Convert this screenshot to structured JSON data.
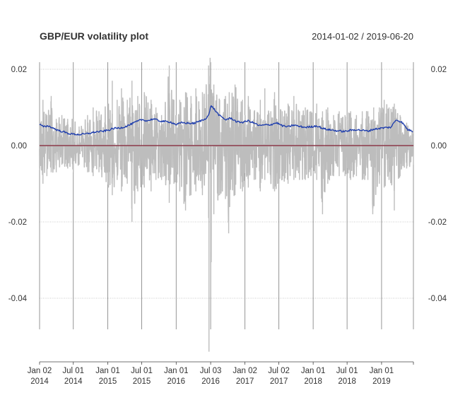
{
  "chart_data": {
    "type": "line",
    "title": "GBP/EUR volatility plot",
    "date_range_label": "2014-01-02 / 2019-06-20",
    "x_start": "2014-01-02",
    "x_end": "2019-06-20",
    "ylim": [
      -0.054,
      0.0225
    ],
    "y_ticks": [
      {
        "value": 0.02,
        "label": "0.02"
      },
      {
        "value": 0.0,
        "label": "0.00"
      },
      {
        "value": -0.02,
        "label": "-0.02"
      },
      {
        "value": -0.04,
        "label": "-0.04"
      }
    ],
    "x_ticks": [
      {
        "date": "2014-01-02",
        "line1": "Jan 02",
        "line2": "2014"
      },
      {
        "date": "2014-07-01",
        "line1": "Jul 01",
        "line2": "2014"
      },
      {
        "date": "2015-01-01",
        "line1": "Jan 01",
        "line2": "2015"
      },
      {
        "date": "2015-07-01",
        "line1": "Jul 01",
        "line2": "2015"
      },
      {
        "date": "2016-01-01",
        "line1": "Jan 01",
        "line2": "2016"
      },
      {
        "date": "2016-07-03",
        "line1": "Jul 03",
        "line2": "2016"
      },
      {
        "date": "2017-01-02",
        "line1": "Jan 02",
        "line2": "2017"
      },
      {
        "date": "2017-07-02",
        "line1": "Jul 02",
        "line2": "2017"
      },
      {
        "date": "2018-01-01",
        "line1": "Jan 01",
        "line2": "2018"
      },
      {
        "date": "2018-07-01",
        "line1": "Jul 01",
        "line2": "2018"
      },
      {
        "date": "2019-01-01",
        "line1": "Jan 01",
        "line2": "2019"
      }
    ],
    "grid": true,
    "series": [
      {
        "color": "#bdbdbd",
        "style": "daily returns (approximate envelope)",
        "upper": [
          [
            "2014-01-02",
            0.006
          ],
          [
            "2014-01-20",
            0.012
          ],
          [
            "2014-02-10",
            0.008
          ],
          [
            "2014-03-05",
            0.013
          ],
          [
            "2014-04-01",
            0.007
          ],
          [
            "2014-05-01",
            0.008
          ],
          [
            "2014-06-01",
            0.007
          ],
          [
            "2014-07-01",
            0.007
          ],
          [
            "2014-08-01",
            0.005
          ],
          [
            "2014-09-15",
            0.008
          ],
          [
            "2014-10-15",
            0.01
          ],
          [
            "2014-11-15",
            0.009
          ],
          [
            "2015-01-05",
            0.011
          ],
          [
            "2015-01-25",
            0.017
          ],
          [
            "2015-02-20",
            0.012
          ],
          [
            "2015-03-15",
            0.015
          ],
          [
            "2015-04-15",
            0.012
          ],
          [
            "2015-05-10",
            0.017
          ],
          [
            "2015-06-10",
            0.013
          ],
          [
            "2015-07-15",
            0.014
          ],
          [
            "2015-08-20",
            0.012
          ],
          [
            "2015-09-15",
            0.01
          ],
          [
            "2015-10-15",
            0.008
          ],
          [
            "2015-11-25",
            0.021
          ],
          [
            "2015-12-20",
            0.012
          ],
          [
            "2016-01-20",
            0.012
          ],
          [
            "2016-02-20",
            0.014
          ],
          [
            "2016-03-20",
            0.013
          ],
          [
            "2016-04-15",
            0.015
          ],
          [
            "2016-05-20",
            0.014
          ],
          [
            "2016-06-22",
            0.021
          ],
          [
            "2016-06-30",
            0.023
          ],
          [
            "2016-07-20",
            0.016
          ],
          [
            "2016-08-20",
            0.012
          ],
          [
            "2016-09-20",
            0.013
          ],
          [
            "2016-10-10",
            0.014
          ],
          [
            "2016-11-10",
            0.016
          ],
          [
            "2016-12-20",
            0.012
          ],
          [
            "2017-01-20",
            0.013
          ],
          [
            "2017-02-20",
            0.009
          ],
          [
            "2017-03-25",
            0.012
          ],
          [
            "2017-04-18",
            0.015
          ],
          [
            "2017-05-20",
            0.009
          ],
          [
            "2017-06-09",
            0.014
          ],
          [
            "2017-07-20",
            0.009
          ],
          [
            "2017-08-20",
            0.011
          ],
          [
            "2017-09-20",
            0.013
          ],
          [
            "2017-10-20",
            0.009
          ],
          [
            "2017-11-20",
            0.01
          ],
          [
            "2017-12-20",
            0.009
          ],
          [
            "2018-01-20",
            0.011
          ],
          [
            "2018-02-20",
            0.009
          ],
          [
            "2018-03-20",
            0.01
          ],
          [
            "2018-04-20",
            0.008
          ],
          [
            "2018-05-20",
            0.009
          ],
          [
            "2018-06-20",
            0.008
          ],
          [
            "2018-07-20",
            0.009
          ],
          [
            "2018-08-20",
            0.008
          ],
          [
            "2018-09-20",
            0.009
          ],
          [
            "2018-10-20",
            0.009
          ],
          [
            "2018-11-20",
            0.01
          ],
          [
            "2018-12-20",
            0.01
          ],
          [
            "2019-01-15",
            0.012
          ],
          [
            "2019-02-10",
            0.01
          ],
          [
            "2019-03-10",
            0.011
          ],
          [
            "2019-04-10",
            0.008
          ],
          [
            "2019-05-15",
            0.006
          ],
          [
            "2019-06-20",
            0.004
          ]
        ],
        "lower": [
          [
            "2014-01-02",
            -0.006
          ],
          [
            "2014-01-20",
            -0.01
          ],
          [
            "2014-02-10",
            -0.008
          ],
          [
            "2014-03-05",
            -0.007
          ],
          [
            "2014-04-01",
            -0.007
          ],
          [
            "2014-05-01",
            -0.005
          ],
          [
            "2014-06-01",
            -0.006
          ],
          [
            "2014-07-01",
            -0.007
          ],
          [
            "2014-08-01",
            -0.005
          ],
          [
            "2014-09-15",
            -0.007
          ],
          [
            "2014-10-15",
            -0.008
          ],
          [
            "2014-11-15",
            -0.007
          ],
          [
            "2015-01-05",
            -0.011
          ],
          [
            "2015-01-25",
            -0.013
          ],
          [
            "2015-02-20",
            -0.009
          ],
          [
            "2015-03-15",
            -0.012
          ],
          [
            "2015-04-15",
            -0.01
          ],
          [
            "2015-05-10",
            -0.02
          ],
          [
            "2015-06-10",
            -0.012
          ],
          [
            "2015-07-15",
            -0.011
          ],
          [
            "2015-08-20",
            -0.012
          ],
          [
            "2015-09-15",
            -0.009
          ],
          [
            "2015-10-15",
            -0.009
          ],
          [
            "2015-11-25",
            -0.015
          ],
          [
            "2015-12-20",
            -0.01
          ],
          [
            "2016-01-20",
            -0.012
          ],
          [
            "2016-02-20",
            -0.017
          ],
          [
            "2016-03-20",
            -0.013
          ],
          [
            "2016-04-15",
            -0.012
          ],
          [
            "2016-05-20",
            -0.013
          ],
          [
            "2016-06-22",
            -0.019
          ],
          [
            "2016-06-24",
            -0.054
          ],
          [
            "2016-07-20",
            -0.018
          ],
          [
            "2016-08-20",
            -0.013
          ],
          [
            "2016-09-20",
            -0.014
          ],
          [
            "2016-10-07",
            -0.023
          ],
          [
            "2016-11-10",
            -0.013
          ],
          [
            "2016-12-20",
            -0.012
          ],
          [
            "2017-01-20",
            -0.011
          ],
          [
            "2017-02-20",
            -0.009
          ],
          [
            "2017-03-25",
            -0.012
          ],
          [
            "2017-04-18",
            -0.009
          ],
          [
            "2017-05-20",
            -0.01
          ],
          [
            "2017-06-09",
            -0.012
          ],
          [
            "2017-07-20",
            -0.009
          ],
          [
            "2017-08-20",
            -0.01
          ],
          [
            "2017-09-20",
            -0.009
          ],
          [
            "2017-10-20",
            -0.009
          ],
          [
            "2017-11-20",
            -0.009
          ],
          [
            "2017-12-20",
            -0.008
          ],
          [
            "2018-01-20",
            -0.009
          ],
          [
            "2018-02-20",
            -0.018
          ],
          [
            "2018-03-20",
            -0.01
          ],
          [
            "2018-04-20",
            -0.008
          ],
          [
            "2018-05-20",
            -0.008
          ],
          [
            "2018-06-20",
            -0.008
          ],
          [
            "2018-07-20",
            -0.009
          ],
          [
            "2018-08-20",
            -0.008
          ],
          [
            "2018-09-20",
            -0.009
          ],
          [
            "2018-10-20",
            -0.009
          ],
          [
            "2018-11-15",
            -0.018
          ],
          [
            "2018-12-20",
            -0.01
          ],
          [
            "2019-01-15",
            -0.011
          ],
          [
            "2019-02-10",
            -0.009
          ],
          [
            "2019-03-10",
            -0.017
          ],
          [
            "2019-04-10",
            -0.008
          ],
          [
            "2019-05-15",
            -0.006
          ],
          [
            "2019-06-20",
            -0.005
          ]
        ]
      },
      {
        "color": "#1a3aad",
        "style": "rolling volatility",
        "points": [
          [
            "2014-01-02",
            0.0055
          ],
          [
            "2014-01-25",
            0.0049
          ],
          [
            "2014-02-15",
            0.0052
          ],
          [
            "2014-03-10",
            0.0047
          ],
          [
            "2014-04-10",
            0.004
          ],
          [
            "2014-05-10",
            0.0036
          ],
          [
            "2014-06-01",
            0.0032
          ],
          [
            "2014-07-01",
            0.003
          ],
          [
            "2014-08-01",
            0.0029
          ],
          [
            "2014-09-01",
            0.003
          ],
          [
            "2014-10-01",
            0.0033
          ],
          [
            "2014-11-01",
            0.0036
          ],
          [
            "2014-12-01",
            0.0037
          ],
          [
            "2015-01-01",
            0.004
          ],
          [
            "2015-02-01",
            0.0045
          ],
          [
            "2015-03-01",
            0.0046
          ],
          [
            "2015-04-01",
            0.0049
          ],
          [
            "2015-05-01",
            0.0055
          ],
          [
            "2015-06-01",
            0.0062
          ],
          [
            "2015-07-01",
            0.0068
          ],
          [
            "2015-08-01",
            0.0065
          ],
          [
            "2015-09-01",
            0.007
          ],
          [
            "2015-10-01",
            0.0065
          ],
          [
            "2015-11-01",
            0.0063
          ],
          [
            "2015-12-01",
            0.0062
          ],
          [
            "2016-01-01",
            0.0055
          ],
          [
            "2016-02-01",
            0.006
          ],
          [
            "2016-03-01",
            0.0059
          ],
          [
            "2016-04-01",
            0.0058
          ],
          [
            "2016-05-01",
            0.0063
          ],
          [
            "2016-06-01",
            0.0069
          ],
          [
            "2016-06-24",
            0.0081
          ],
          [
            "2016-07-05",
            0.0106
          ],
          [
            "2016-07-25",
            0.0093
          ],
          [
            "2016-08-20",
            0.0078
          ],
          [
            "2016-09-20",
            0.0068
          ],
          [
            "2016-10-20",
            0.0072
          ],
          [
            "2016-11-20",
            0.0062
          ],
          [
            "2016-12-20",
            0.0061
          ],
          [
            "2017-01-20",
            0.0065
          ],
          [
            "2017-02-20",
            0.0059
          ],
          [
            "2017-03-20",
            0.0052
          ],
          [
            "2017-04-20",
            0.0054
          ],
          [
            "2017-05-20",
            0.0055
          ],
          [
            "2017-06-20",
            0.006
          ],
          [
            "2017-07-20",
            0.0052
          ],
          [
            "2017-08-20",
            0.0049
          ],
          [
            "2017-09-20",
            0.0054
          ],
          [
            "2017-10-20",
            0.005
          ],
          [
            "2017-11-20",
            0.0048
          ],
          [
            "2017-12-20",
            0.0049
          ],
          [
            "2018-01-20",
            0.0052
          ],
          [
            "2018-02-20",
            0.0045
          ],
          [
            "2018-03-20",
            0.0042
          ],
          [
            "2018-04-20",
            0.004
          ],
          [
            "2018-05-20",
            0.0038
          ],
          [
            "2018-06-20",
            0.0037
          ],
          [
            "2018-07-20",
            0.004
          ],
          [
            "2018-08-20",
            0.0042
          ],
          [
            "2018-09-20",
            0.004
          ],
          [
            "2018-10-20",
            0.0038
          ],
          [
            "2018-11-20",
            0.0043
          ],
          [
            "2018-12-20",
            0.0045
          ],
          [
            "2019-01-20",
            0.0047
          ],
          [
            "2019-02-20",
            0.0048
          ],
          [
            "2019-03-20",
            0.0068
          ],
          [
            "2019-04-20",
            0.0061
          ],
          [
            "2019-05-20",
            0.0042
          ],
          [
            "2019-06-20",
            0.0037
          ]
        ]
      },
      {
        "color": "#8b3a4a",
        "style": "zero reference line",
        "points": [
          [
            "2014-01-02",
            0.0
          ],
          [
            "2019-06-20",
            0.0
          ]
        ]
      }
    ]
  }
}
